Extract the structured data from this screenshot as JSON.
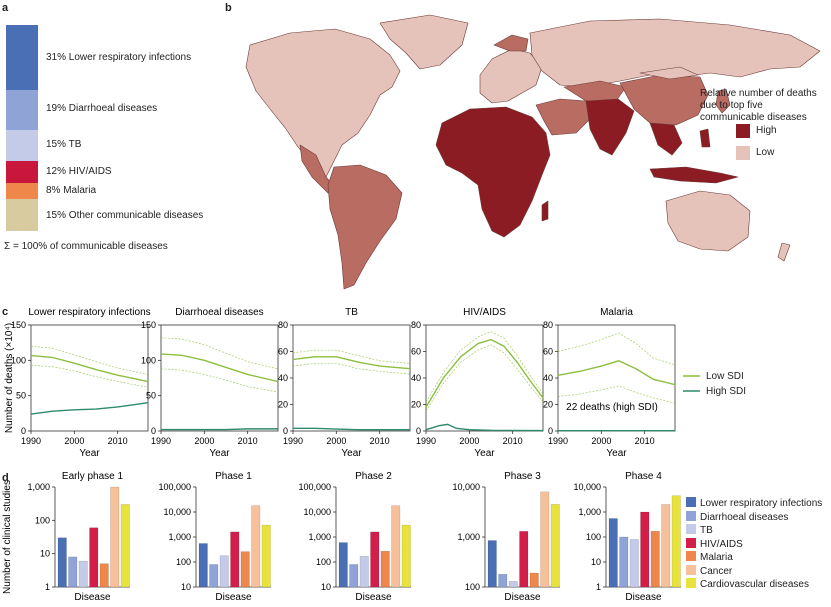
{
  "figure_labels": {
    "a": "a",
    "b": "b",
    "c": "c",
    "d": "d"
  },
  "panel_a": {
    "segments": [
      {
        "label": "31% Lower respiratory infections",
        "color": "#4a6fb5"
      },
      {
        "label": "19% Diarrhoeal diseases",
        "color": "#8fa3d6"
      },
      {
        "label": "15% TB",
        "color": "#c3cbe8"
      },
      {
        "label": "12% HIV/AIDS",
        "color": "#c8163d"
      },
      {
        "label": "8% Malaria",
        "color": "#f0874a"
      },
      {
        "label": "15% Other communicable diseases",
        "color": "#d8cba0"
      }
    ],
    "total_label": "Σ = 100% of communicable diseases"
  },
  "panel_b": {
    "legend_title": "Relative number of deaths due to top five communicable diseases",
    "legend_high": "High",
    "legend_low": "Low",
    "colors": {
      "high": "#8c1c23",
      "mid": "#b96c62",
      "low": "#e6c3ba",
      "sea": "#ffffff"
    }
  },
  "panel_c": {
    "ylabel": "Number of deaths (×10⁴)",
    "xlabel": "Year",
    "legend": [
      {
        "label": "Low SDI",
        "color": "#8cbf3f"
      },
      {
        "label": "High SDI",
        "color": "#2e8a6e"
      }
    ],
    "annotation": "22 deaths (high SDI)",
    "chart_data": [
      {
        "type": "line",
        "title": "Lower respiratory infections",
        "xlim": [
          1990,
          2017
        ],
        "ylim": [
          0,
          150
        ],
        "yticks": [
          0,
          50,
          100,
          150
        ],
        "xticks": [
          1990,
          2000,
          2010
        ],
        "series": [
          {
            "name": "Low SDI",
            "x": [
              1990,
              1995,
              2000,
              2005,
              2010,
              2017
            ],
            "values": [
              107,
              104,
              96,
              87,
              79,
              70
            ],
            "band": [
              [
                120,
                93
              ],
              [
                117,
                91
              ],
              [
                108,
                85
              ],
              [
                98,
                77
              ],
              [
                89,
                70
              ],
              [
                80,
                62
              ]
            ]
          },
          {
            "name": "High SDI",
            "x": [
              1990,
              1995,
              2000,
              2005,
              2010,
              2017
            ],
            "values": [
              24,
              28,
              30,
              31,
              34,
              40
            ]
          }
        ]
      },
      {
        "type": "line",
        "title": "Diarrhoeal diseases",
        "xlim": [
          1990,
          2017
        ],
        "ylim": [
          0,
          150
        ],
        "yticks": [
          0,
          50,
          100,
          150
        ],
        "xticks": [
          1990,
          2000,
          2010
        ],
        "series": [
          {
            "name": "Low SDI",
            "x": [
              1990,
              1995,
              2000,
              2005,
              2010,
              2017
            ],
            "values": [
              109,
              107,
              100,
              90,
              80,
              70
            ],
            "band": [
              [
                132,
                88
              ],
              [
                130,
                86
              ],
              [
                122,
                80
              ],
              [
                110,
                72
              ],
              [
                98,
                63
              ],
              [
                88,
                55
              ]
            ]
          },
          {
            "name": "High SDI",
            "x": [
              1990,
              1995,
              2000,
              2005,
              2010,
              2017
            ],
            "values": [
              2,
              2,
              2,
              2,
              3,
              3
            ]
          }
        ]
      },
      {
        "type": "line",
        "title": "TB",
        "xlim": [
          1990,
          2017
        ],
        "ylim": [
          0,
          80
        ],
        "yticks": [
          0,
          20,
          40,
          60,
          80
        ],
        "xticks": [
          1990,
          2000,
          2010
        ],
        "series": [
          {
            "name": "Low SDI",
            "x": [
              1990,
              1995,
              2000,
              2005,
              2010,
              2017
            ],
            "values": [
              54,
              56,
              56,
              52,
              49,
              47
            ],
            "band": [
              [
                59,
                49
              ],
              [
                61,
                51
              ],
              [
                61,
                51
              ],
              [
                57,
                47
              ],
              [
                53,
                45
              ],
              [
                51,
                43
              ]
            ]
          },
          {
            "name": "High SDI",
            "x": [
              1990,
              1995,
              2000,
              2005,
              2010,
              2017
            ],
            "values": [
              2,
              2,
              1.5,
              1,
              1,
              1
            ]
          }
        ]
      },
      {
        "type": "line",
        "title": "HIV/AIDS",
        "xlim": [
          1990,
          2017
        ],
        "ylim": [
          0,
          80
        ],
        "yticks": [
          0,
          20,
          40,
          60,
          80
        ],
        "xticks": [
          1990,
          2000,
          2010
        ],
        "series": [
          {
            "name": "Low SDI",
            "x": [
              1990,
              1994,
              1998,
              2002,
              2005,
              2008,
              2011,
              2014,
              2017
            ],
            "values": [
              18,
              40,
              56,
              66,
              69,
              64,
              52,
              38,
              25
            ],
            "band": [
              [
                22,
                15
              ],
              [
                44,
                36
              ],
              [
                61,
                52
              ],
              [
                71,
                61
              ],
              [
                75,
                65
              ],
              [
                70,
                59
              ],
              [
                57,
                47
              ],
              [
                42,
                34
              ],
              [
                28,
                22
              ]
            ]
          },
          {
            "name": "High SDI",
            "x": [
              1990,
              1993,
              1995,
              1997,
              2000,
              2005,
              2017
            ],
            "values": [
              1,
              4,
              5,
              2,
              1,
              0.5,
              0.3
            ]
          }
        ]
      },
      {
        "type": "line",
        "title": "Malaria",
        "xlim": [
          1990,
          2017
        ],
        "ylim": [
          0,
          80
        ],
        "yticks": [
          0,
          20,
          40,
          60,
          80
        ],
        "xticks": [
          1990,
          2000,
          2010
        ],
        "series": [
          {
            "name": "Low SDI",
            "x": [
              1990,
              1995,
              2000,
              2004,
              2008,
              2012,
              2017
            ],
            "values": [
              42,
              45,
              49,
              53,
              47,
              39,
              35
            ],
            "band": [
              [
                60,
                26
              ],
              [
                64,
                28
              ],
              [
                69,
                31
              ],
              [
                74,
                34
              ],
              [
                66,
                29
              ],
              [
                55,
                25
              ],
              [
                50,
                21
              ]
            ]
          },
          {
            "name": "High SDI",
            "x": [
              1990,
              2017
            ],
            "values": [
              0.2,
              0.2
            ]
          }
        ]
      }
    ]
  },
  "panel_d": {
    "ylabel": "Number of clinical studies",
    "xlabel": "Disease",
    "legend": [
      {
        "label": "Lower respiratory infections",
        "color": "#4a6fb5"
      },
      {
        "label": "Diarrhoeal diseases",
        "color": "#8fa3d6"
      },
      {
        "label": "TB",
        "color": "#c3cbe8"
      },
      {
        "label": "HIV/AIDS",
        "color": "#d41e4a"
      },
      {
        "label": "Malaria",
        "color": "#f0874a"
      },
      {
        "label": "Cancer",
        "color": "#f5c09a"
      },
      {
        "label": "Cardiovascular diseases",
        "color": "#e8e33c"
      }
    ],
    "chart_data": [
      {
        "type": "bar",
        "title": "Early phase 1",
        "scale": "log",
        "ylim": [
          1,
          1000
        ],
        "ytick_labels": [
          "1",
          "10",
          "100",
          "1,000"
        ],
        "categories": [
          "Lower respiratory infections",
          "Diarrhoeal diseases",
          "TB",
          "HIV/AIDS",
          "Malaria",
          "Cancer",
          "Cardiovascular diseases"
        ],
        "values": [
          30,
          8,
          6,
          60,
          5,
          1000,
          300
        ]
      },
      {
        "type": "bar",
        "title": "Phase 1",
        "scale": "log",
        "ylim": [
          10,
          100000
        ],
        "ytick_labels": [
          "10",
          "100",
          "1,000",
          "10,000",
          "100,000"
        ],
        "categories": [
          "Lower respiratory infections",
          "Diarrhoeal diseases",
          "TB",
          "HIV/AIDS",
          "Malaria",
          "Cancer",
          "Cardiovascular diseases"
        ],
        "values": [
          550,
          80,
          180,
          1600,
          260,
          18000,
          3000
        ]
      },
      {
        "type": "bar",
        "title": "Phase 2",
        "scale": "log",
        "ylim": [
          10,
          100000
        ],
        "ytick_labels": [
          "10",
          "100",
          "1,000",
          "10,000",
          "100,000"
        ],
        "categories": [
          "Lower respiratory infections",
          "Diarrhoeal diseases",
          "TB",
          "HIV/AIDS",
          "Malaria",
          "Cancer",
          "Cardiovascular diseases"
        ],
        "values": [
          600,
          80,
          170,
          1600,
          270,
          18000,
          3000
        ]
      },
      {
        "type": "bar",
        "title": "Phase 3",
        "scale": "log",
        "ylim": [
          100,
          10000
        ],
        "ytick_labels": [
          "100",
          "1,000",
          "10,000"
        ],
        "categories": [
          "Lower respiratory infections",
          "Diarrhoeal diseases",
          "TB",
          "HIV/AIDS",
          "Malaria",
          "Cancer",
          "Cardiovascular diseases"
        ],
        "values": [
          850,
          180,
          130,
          1300,
          190,
          8000,
          4500
        ]
      },
      {
        "type": "bar",
        "title": "Phase 4",
        "scale": "log",
        "ylim": [
          1,
          10000
        ],
        "ytick_labels": [
          "1",
          "10",
          "100",
          "1,000",
          "10,000"
        ],
        "categories": [
          "Lower respiratory infections",
          "Diarrhoeal diseases",
          "TB",
          "HIV/AIDS",
          "Malaria",
          "Cancer",
          "Cardiovascular diseases"
        ],
        "values": [
          550,
          100,
          80,
          1000,
          170,
          2000,
          4500
        ]
      }
    ]
  }
}
